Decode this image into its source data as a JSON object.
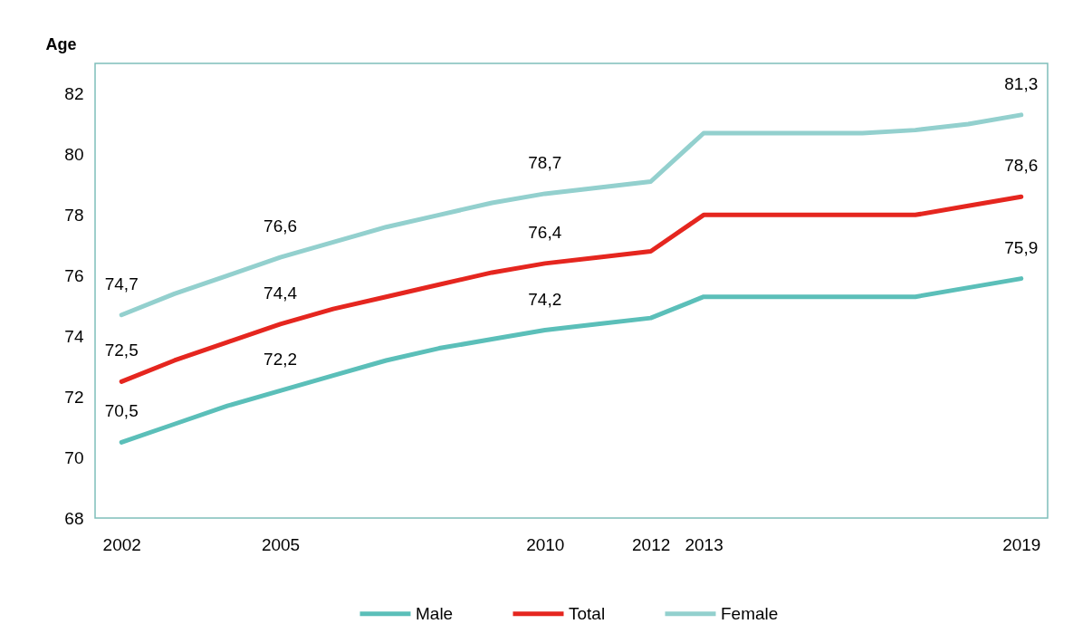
{
  "chart_data": {
    "type": "line",
    "ylabel": "Age",
    "x": [
      2002,
      2003,
      2004,
      2005,
      2006,
      2007,
      2008,
      2009,
      2010,
      2011,
      2012,
      2013,
      2014,
      2015,
      2016,
      2017,
      2018,
      2019
    ],
    "xlim": [
      2001.5,
      2019.5
    ],
    "xticks": [
      2002,
      2005,
      2010,
      2012,
      2013,
      2019
    ],
    "ylim": [
      68,
      83
    ],
    "yticks": [
      68,
      70,
      72,
      74,
      76,
      78,
      80,
      82
    ],
    "legend": "bottom",
    "series": [
      {
        "name": "Male",
        "color": "#5bbfb9",
        "values": [
          70.5,
          71.1,
          71.7,
          72.2,
          72.7,
          73.2,
          73.6,
          73.9,
          74.2,
          74.4,
          74.6,
          75.3,
          75.3,
          75.3,
          75.3,
          75.3,
          75.6,
          75.9
        ],
        "value_labels": [
          "70,5",
          null,
          null,
          "72,2",
          null,
          null,
          null,
          null,
          "74,2",
          null,
          null,
          null,
          null,
          null,
          null,
          null,
          null,
          "75,9"
        ]
      },
      {
        "name": "Total",
        "color": "#e5261f",
        "values": [
          72.5,
          73.2,
          73.8,
          74.4,
          74.9,
          75.3,
          75.7,
          76.1,
          76.4,
          76.6,
          76.8,
          78.0,
          78.0,
          78.0,
          78.0,
          78.0,
          78.3,
          78.6
        ],
        "value_labels": [
          "72,5",
          null,
          null,
          "74,4",
          null,
          null,
          null,
          null,
          "76,4",
          null,
          null,
          null,
          null,
          null,
          null,
          null,
          null,
          "78,6"
        ]
      },
      {
        "name": "Female",
        "color": "#93d0ce",
        "values": [
          74.7,
          75.4,
          76.0,
          76.6,
          77.1,
          77.6,
          78.0,
          78.4,
          78.7,
          78.9,
          79.1,
          80.7,
          80.7,
          80.7,
          80.7,
          80.8,
          81.0,
          81.3
        ],
        "value_labels": [
          "74,7",
          null,
          null,
          "76,6",
          null,
          null,
          null,
          null,
          "78,7",
          null,
          null,
          null,
          null,
          null,
          null,
          null,
          null,
          "81,3"
        ]
      }
    ]
  }
}
